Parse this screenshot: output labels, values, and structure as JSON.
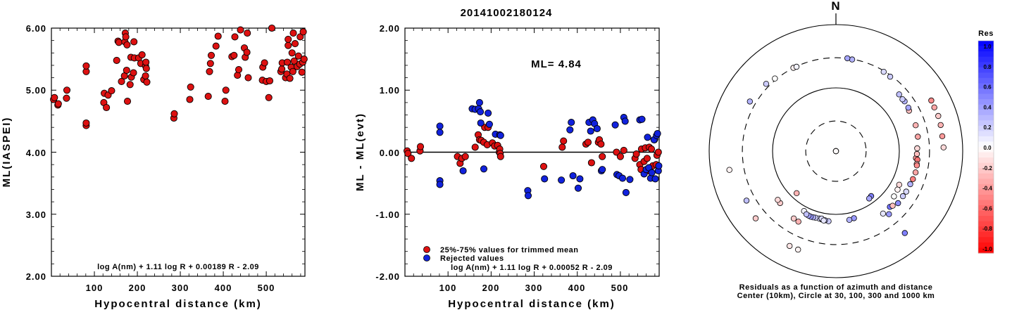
{
  "title": "20141002180124",
  "chart_data": [
    {
      "type": "scatter",
      "ylabel": "ML(IASPEI)",
      "xlabel": "Hypocentral distance (km)",
      "xlim": [
        0,
        590
      ],
      "ylim": [
        2.0,
        6.0
      ],
      "x_ticks": [
        "100",
        "200",
        "300",
        "400",
        "500"
      ],
      "y_ticks": [
        "2.00",
        "3.00",
        "4.00",
        "5.00",
        "6.00"
      ],
      "formula": "log A(nm) + 1.11 log R + 0.00189 R - 2.09",
      "point_color": "#dd1111",
      "points": [
        [
          5,
          4.85
        ],
        [
          7,
          4.88
        ],
        [
          15,
          4.76
        ],
        [
          16,
          4.78
        ],
        [
          35,
          4.87
        ],
        [
          36,
          5.0
        ],
        [
          81,
          4.43
        ],
        [
          81,
          4.47
        ],
        [
          81,
          5.3
        ],
        [
          81,
          5.39
        ],
        [
          122,
          4.8
        ],
        [
          123,
          4.95
        ],
        [
          128,
          4.72
        ],
        [
          132,
          4.92
        ],
        [
          140,
          4.99
        ],
        [
          152,
          5.48
        ],
        [
          155,
          5.79
        ],
        [
          157,
          5.77
        ],
        [
          163,
          5.14
        ],
        [
          170,
          5.23
        ],
        [
          171,
          5.78
        ],
        [
          172,
          5.92
        ],
        [
          173,
          5.86
        ],
        [
          175,
          5.32
        ],
        [
          176,
          5.73
        ],
        [
          177,
          4.82
        ],
        [
          183,
          5.09
        ],
        [
          185,
          5.53
        ],
        [
          186,
          5.21
        ],
        [
          191,
          5.28
        ],
        [
          192,
          5.78
        ],
        [
          193,
          5.52
        ],
        [
          203,
          5.52
        ],
        [
          208,
          5.43
        ],
        [
          211,
          5.57
        ],
        [
          215,
          5.17
        ],
        [
          219,
          5.23
        ],
        [
          219,
          5.39
        ],
        [
          220,
          5.45
        ],
        [
          221,
          5.35
        ],
        [
          222,
          5.13
        ],
        [
          285,
          4.55
        ],
        [
          286,
          4.62
        ],
        [
          322,
          4.85
        ],
        [
          324,
          5.05
        ],
        [
          365,
          4.9
        ],
        [
          368,
          5.3
        ],
        [
          370,
          5.43
        ],
        [
          372,
          5.56
        ],
        [
          383,
          5.71
        ],
        [
          388,
          5.87
        ],
        [
          404,
          4.82
        ],
        [
          406,
          5.0
        ],
        [
          420,
          5.54
        ],
        [
          425,
          5.56
        ],
        [
          427,
          5.86
        ],
        [
          433,
          5.24
        ],
        [
          436,
          5.33
        ],
        [
          440,
          5.97
        ],
        [
          442,
          6.02
        ],
        [
          449,
          5.68
        ],
        [
          451,
          5.53
        ],
        [
          455,
          5.61
        ],
        [
          456,
          5.92
        ],
        [
          458,
          5.2
        ],
        [
          491,
          5.16
        ],
        [
          492,
          5.37
        ],
        [
          496,
          5.44
        ],
        [
          500,
          5.14
        ],
        [
          506,
          4.88
        ],
        [
          508,
          5.15
        ],
        [
          513,
          6.0
        ],
        [
          534,
          5.3
        ],
        [
          536,
          5.34
        ],
        [
          537,
          5.44
        ],
        [
          545,
          5.2
        ],
        [
          548,
          5.26
        ],
        [
          549,
          5.45
        ],
        [
          551,
          5.72
        ],
        [
          551,
          5.82
        ],
        [
          555,
          5.19
        ],
        [
          558,
          5.37
        ],
        [
          560,
          5.6
        ],
        [
          562,
          5.3
        ],
        [
          563,
          5.92
        ],
        [
          565,
          5.47
        ],
        [
          567,
          5.75
        ],
        [
          572,
          5.38
        ],
        [
          575,
          5.55
        ],
        [
          578,
          5.42
        ],
        [
          579,
          5.86
        ],
        [
          583,
          5.29
        ],
        [
          585,
          5.45
        ],
        [
          586,
          5.94
        ],
        [
          588,
          5.5
        ]
      ]
    },
    {
      "type": "scatter",
      "ylabel": "ML - ML(evt)",
      "xlabel": "Hypocentral distance (km)",
      "xlim": [
        0,
        590
      ],
      "ylim": [
        -2.0,
        2.0
      ],
      "x_ticks": [
        "100",
        "200",
        "300",
        "400",
        "500"
      ],
      "y_ticks": [
        "-2.00",
        "-1.00",
        "0.00",
        "1.00",
        "2.00"
      ],
      "annotation": "ML= 4.84",
      "formula": "log A(nm) + 1.11 log R + 0.00052 R - 2.09",
      "reference_line": 0.0,
      "legend": [
        {
          "label": "25%-75% values for trimmed mean",
          "color": "#dd1111"
        },
        {
          "label": "Rejected values",
          "color": "#1122dd"
        }
      ],
      "series": [
        {
          "name": "25%-75% values for trimmed mean",
          "color": "#dd1111",
          "points": [
            [
              5,
              0.02
            ],
            [
              7,
              -0.02
            ],
            [
              15,
              -0.1
            ],
            [
              35,
              0.02
            ],
            [
              36,
              0.09
            ],
            [
              122,
              -0.07
            ],
            [
              128,
              -0.18
            ],
            [
              132,
              -0.1
            ],
            [
              140,
              -0.07
            ],
            [
              163,
              0.08
            ],
            [
              170,
              0.28
            ],
            [
              173,
              0.2
            ],
            [
              177,
              0.19
            ],
            [
              183,
              0.16
            ],
            [
              185,
              0.4
            ],
            [
              191,
              0.12
            ],
            [
              193,
              0.4
            ],
            [
              203,
              0.15
            ],
            [
              208,
              0.1
            ],
            [
              215,
              0.11
            ],
            [
              219,
              0.0
            ],
            [
              220,
              0.05
            ],
            [
              221,
              -0.02
            ],
            [
              222,
              -0.07
            ],
            [
              322,
              -0.23
            ],
            [
              365,
              0.08
            ],
            [
              368,
              0.18
            ],
            [
              420,
              0.13
            ],
            [
              425,
              0.16
            ],
            [
              433,
              -0.17
            ],
            [
              449,
              0.16
            ],
            [
              451,
              0.2
            ],
            [
              455,
              0.13
            ],
            [
              458,
              -0.07
            ],
            [
              491,
              0.0
            ],
            [
              500,
              -0.07
            ],
            [
              508,
              0.03
            ],
            [
              534,
              -0.1
            ],
            [
              537,
              -0.03
            ],
            [
              545,
              -0.2
            ],
            [
              548,
              -0.28
            ],
            [
              549,
              0.05
            ],
            [
              555,
              -0.15
            ],
            [
              558,
              0.07
            ],
            [
              562,
              -0.1
            ],
            [
              565,
              -0.3
            ],
            [
              567,
              0.08
            ],
            [
              572,
              0.05
            ],
            [
              575,
              -0.22
            ],
            [
              579,
              0.2
            ],
            [
              583,
              -0.2
            ],
            [
              585,
              -0.05
            ],
            [
              588,
              0.0
            ]
          ]
        },
        {
          "name": "Rejected values",
          "color": "#1122dd",
          "points": [
            [
              81,
              0.42
            ],
            [
              81,
              0.32
            ],
            [
              81,
              -0.46
            ],
            [
              81,
              -0.52
            ],
            [
              135,
              -0.3
            ],
            [
              156,
              0.7
            ],
            [
              163,
              0.69
            ],
            [
              171,
              0.7
            ],
            [
              173,
              0.8
            ],
            [
              175,
              0.65
            ],
            [
              176,
              0.47
            ],
            [
              183,
              -0.27
            ],
            [
              193,
              0.63
            ],
            [
              196,
              0.45
            ],
            [
              210,
              0.29
            ],
            [
              220,
              0.28
            ],
            [
              222,
              0.27
            ],
            [
              285,
              -0.62
            ],
            [
              286,
              -0.7
            ],
            [
              324,
              -0.43
            ],
            [
              363,
              -0.45
            ],
            [
              383,
              0.36
            ],
            [
              386,
              0.48
            ],
            [
              390,
              -0.38
            ],
            [
              402,
              -0.58
            ],
            [
              406,
              -0.43
            ],
            [
              427,
              0.48
            ],
            [
              431,
              0.34
            ],
            [
              436,
              0.52
            ],
            [
              440,
              0.46
            ],
            [
              446,
              0.38
            ],
            [
              456,
              -0.3
            ],
            [
              458,
              -0.28
            ],
            [
              488,
              0.44
            ],
            [
              492,
              -0.36
            ],
            [
              497,
              -0.38
            ],
            [
              505,
              -0.42
            ],
            [
              508,
              0.56
            ],
            [
              511,
              0.5
            ],
            [
              513,
              -0.65
            ],
            [
              522,
              -0.44
            ],
            [
              545,
              0.52
            ],
            [
              550,
              0.53
            ],
            [
              555,
              -0.35
            ],
            [
              560,
              -0.28
            ],
            [
              563,
              0.24
            ],
            [
              566,
              -0.25
            ],
            [
              570,
              -0.42
            ],
            [
              573,
              -0.33
            ],
            [
              578,
              0.2
            ],
            [
              581,
              -0.43
            ],
            [
              584,
              0.27
            ],
            [
              586,
              0.3
            ],
            [
              588,
              -0.3
            ],
            [
              589,
              -0.22
            ]
          ]
        }
      ]
    },
    {
      "type": "polar-residuals",
      "north_label": "N",
      "caption_line1": "Residuals as a function of azimuth and distance",
      "caption_line2": "Center (10km), Circle at 30, 100, 300 and 1000 km",
      "rings": [
        {
          "radius_km": 30,
          "style": "dashed"
        },
        {
          "radius_km": 100,
          "style": "solid"
        },
        {
          "radius_km": 300,
          "style": "dashed"
        },
        {
          "radius_km": 1000,
          "style": "solid"
        }
      ],
      "colorbar": {
        "title": "Res",
        "ticks": [
          "1.0",
          "0.8",
          "0.6",
          "0.4",
          "0.2",
          "0.0",
          "-0.2",
          "-0.4",
          "-0.6",
          "-0.8",
          "-1.0"
        ],
        "positive_color": "#0000ff",
        "negative_color": "#ff0000"
      },
      "points": [
        [
          358,
          5,
          0.0
        ],
        [
          350,
          6,
          0.0
        ],
        [
          356,
          7,
          0.05
        ],
        [
          175,
          6,
          -0.02
        ],
        [
          223,
          81,
          -0.3
        ],
        [
          142,
          80,
          0.5
        ],
        [
          145,
          82,
          0.35
        ],
        [
          208,
          118,
          0.05
        ],
        [
          165,
          125,
          0.4
        ],
        [
          169,
          128,
          0.3
        ],
        [
          186,
          130,
          0.2
        ],
        [
          189,
          128,
          0.25
        ],
        [
          192,
          126,
          0.22
        ],
        [
          194,
          125,
          0.15
        ],
        [
          197,
          126,
          0.18
        ],
        [
          199,
          128,
          0.3
        ],
        [
          201,
          129,
          0.4
        ],
        [
          203,
          128,
          0.35
        ],
        [
          205,
          126,
          0.25
        ],
        [
          192,
          123,
          0.15
        ],
        [
          190,
          130,
          0.1
        ],
        [
          122,
          140,
          -0.05
        ],
        [
          118,
          135,
          -0.15
        ],
        [
          128,
          145,
          0.0
        ],
        [
          227,
          160,
          -0.2
        ],
        [
          230,
          158,
          -0.15
        ],
        [
          136,
          168,
          0.55
        ],
        [
          143,
          172,
          0.1
        ],
        [
          134,
          175,
          -0.25
        ],
        [
          208,
          183,
          -0.3
        ],
        [
          212,
          180,
          -0.2
        ],
        [
          95,
          185,
          -0.4
        ],
        [
          92,
          190,
          -0.25
        ],
        [
          88,
          192,
          -0.15
        ],
        [
          96,
          196,
          -0.55
        ],
        [
          99,
          195,
          -0.3
        ],
        [
          100,
          198,
          -0.45
        ],
        [
          105,
          200,
          -0.35
        ],
        [
          110,
          196,
          -0.5
        ],
        [
          114,
          192,
          0.3
        ],
        [
          120,
          191,
          0.15
        ],
        [
          124,
          188,
          0.2
        ],
        [
          130,
          190,
          0.45
        ],
        [
          140,
          200,
          0.4
        ],
        [
          80,
          205,
          -0.35
        ],
        [
          72,
          210,
          -0.3
        ],
        [
          61,
          208,
          -0.25
        ],
        [
          59,
          215,
          0.35
        ],
        [
          54,
          218,
          0.3
        ],
        [
          48,
          219,
          0.25
        ],
        [
          52,
          215,
          0.2
        ],
        [
          36,
          285,
          0.2
        ],
        [
          31,
          290,
          0.15
        ],
        [
          10,
          296,
          0.3
        ],
        [
          7,
          301,
          0.35
        ],
        [
          333,
          300,
          -0.05
        ],
        [
          335,
          296,
          0.05
        ],
        [
          320,
          315,
          0.0
        ],
        [
          314,
          340,
          0.2
        ],
        [
          260,
          510,
          -0.05
        ],
        [
          300,
          370,
          0.3
        ],
        [
          241,
          410,
          0.25
        ],
        [
          230,
          450,
          -0.2
        ],
        [
          206,
          465,
          -0.1
        ],
        [
          201,
          465,
          -0.05
        ],
        [
          140,
          490,
          0.5
        ],
        [
          88,
          500,
          -0.15
        ],
        [
          82,
          495,
          -0.4
        ],
        [
          76,
          505,
          -0.3
        ],
        [
          71,
          510,
          -0.2
        ],
        [
          66,
          500,
          -0.35
        ],
        [
          62,
          505,
          -0.45
        ]
      ]
    }
  ]
}
